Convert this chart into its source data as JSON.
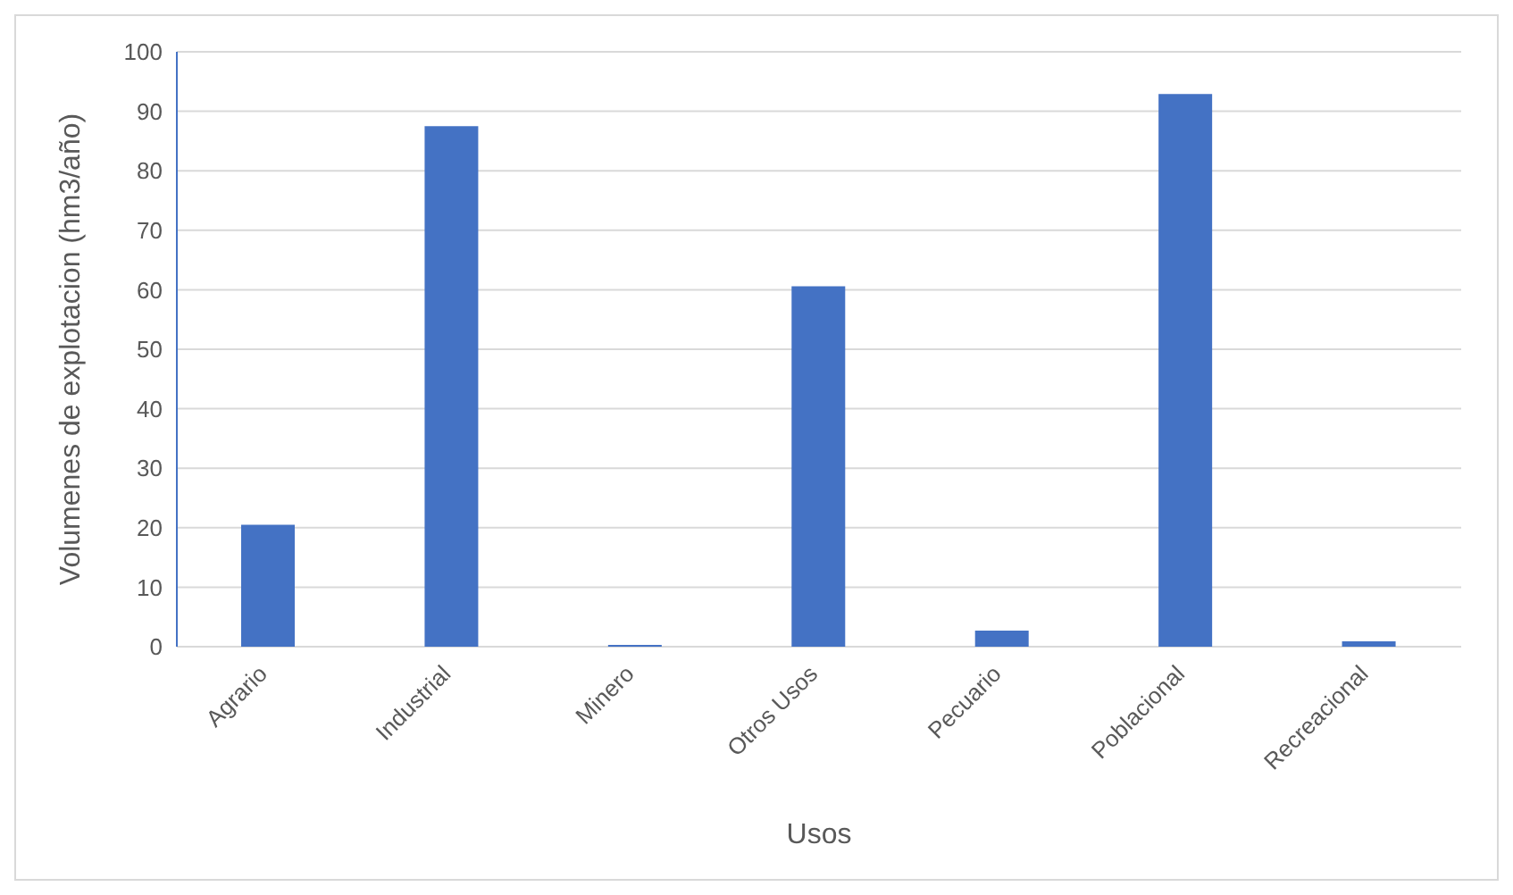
{
  "chart_data": {
    "type": "bar",
    "xlabel": "Usos",
    "ylabel": "Volumenes de explotacion (hm3/año)",
    "categories": [
      "Agrario",
      "Industrial",
      "Minero",
      "Otros Usos",
      "Pecuario",
      "Poblacional",
      "Recreacional"
    ],
    "values": [
      20.5,
      87.5,
      0.3,
      60.6,
      2.7,
      92.9,
      0.9
    ],
    "color": "#4472c4",
    "ylim": [
      0,
      100
    ],
    "yticks": [
      0,
      10,
      20,
      30,
      40,
      50,
      60,
      70,
      80,
      90,
      100
    ],
    "grid": "y"
  }
}
